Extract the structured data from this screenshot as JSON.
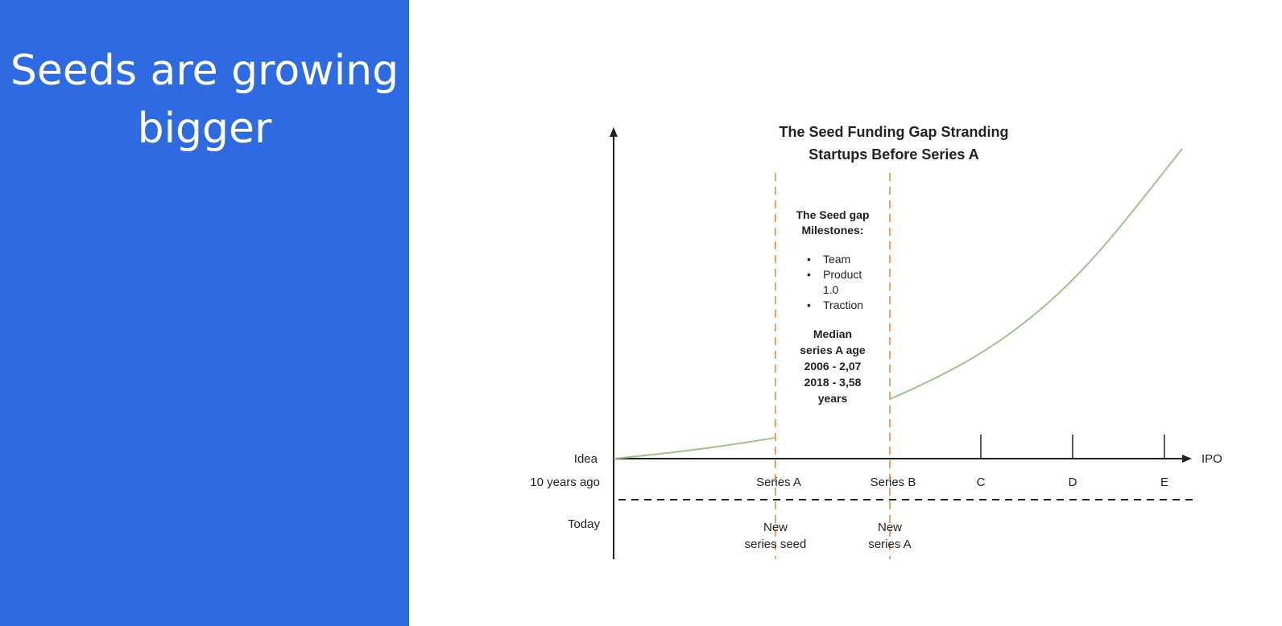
{
  "slide": {
    "title_line1": "Seeds are growing",
    "title_line2": "bigger",
    "accent_color": "#2e6be3"
  },
  "diagram": {
    "title_line1": "The Seed Funding Gap Stranding",
    "title_line2": "Startups Before Series A",
    "gap_heading_line1": "The Seed gap",
    "gap_heading_line2": "Milestones:",
    "milestones": [
      "Team",
      "Product",
      "1.0",
      "Traction"
    ],
    "bullet": "•",
    "median_lines": [
      "Median",
      "series A age",
      "2006 - 2,07",
      "2018 - 3,58",
      "years"
    ],
    "row_labels": {
      "start": "Idea",
      "past": "10 years ago",
      "today": "Today"
    },
    "x_end_label": "IPO",
    "past_stages": [
      "Series A",
      "Series B",
      "C",
      "D",
      "E"
    ],
    "today_stage_a": [
      "New",
      "series seed"
    ],
    "today_stage_b": [
      "New",
      "series A"
    ],
    "colors": {
      "gap_line": "#f0a060",
      "curve": "#9cc58a",
      "axis": "#222222"
    }
  }
}
